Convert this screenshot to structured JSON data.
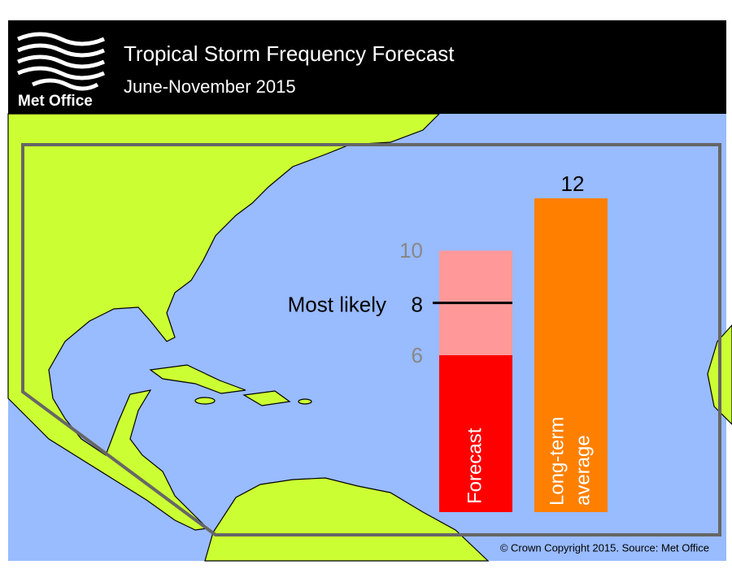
{
  "chart_data": {
    "type": "range-bar",
    "logo": "Met Office",
    "title": "Tropical Storm Frequency Forecast",
    "subtitle": "June-November 2015",
    "source": "© Crown Copyright 2015. Source: Met Office",
    "forecast": {
      "label": "Forecast",
      "low": 6,
      "most_likely": 8,
      "high": 10,
      "most_likely_label": "Most likely",
      "color": "#ff0000",
      "range_color": "#ff9999",
      "line_color": "#000000"
    },
    "average": {
      "label_lines": [
        "Long-term",
        "average"
      ],
      "value": 12,
      "color": "#ff8000"
    }
  }
}
